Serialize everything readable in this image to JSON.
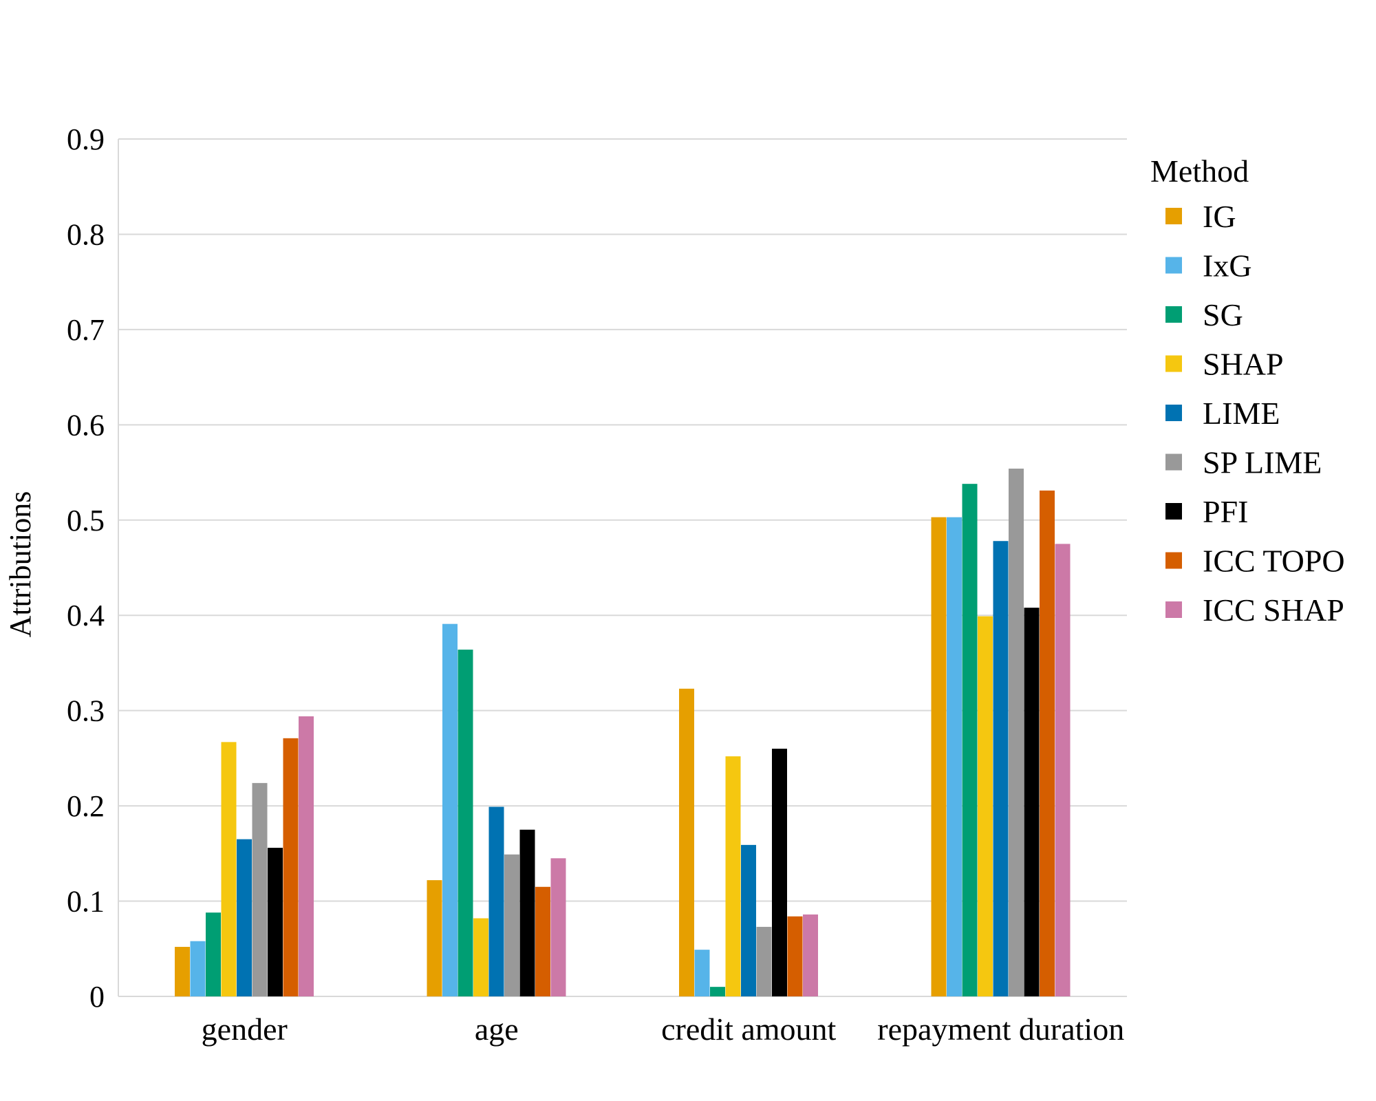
{
  "chart_data": {
    "type": "bar",
    "title": "",
    "xlabel": "",
    "ylabel": "Attributions",
    "ylim": [
      0,
      0.9
    ],
    "yticks": [
      "0",
      "0.1",
      "0.2",
      "0.3",
      "0.4",
      "0.5",
      "0.6",
      "0.7",
      "0.8",
      "0.9"
    ],
    "grid": "horizontal",
    "legend": {
      "title": "Method",
      "placement": "right"
    },
    "categories": [
      "gender",
      "age",
      "credit amount",
      "repayment duration"
    ],
    "series": [
      {
        "name": "IG",
        "color": "#E69F00",
        "values": [
          0.052,
          0.122,
          0.323,
          0.503
        ]
      },
      {
        "name": "IxG",
        "color": "#56B4E9",
        "values": [
          0.058,
          0.391,
          0.049,
          0.503
        ]
      },
      {
        "name": "SG",
        "color": "#009E73",
        "values": [
          0.088,
          0.364,
          0.01,
          0.538
        ]
      },
      {
        "name": "SHAP",
        "color": "#F5C710",
        "values": [
          0.267,
          0.082,
          0.252,
          0.399
        ]
      },
      {
        "name": "LIME",
        "color": "#0072B2",
        "values": [
          0.165,
          0.199,
          0.159,
          0.478
        ]
      },
      {
        "name": "SP LIME",
        "color": "#999999",
        "values": [
          0.224,
          0.149,
          0.073,
          0.554
        ]
      },
      {
        "name": "PFI",
        "color": "#000000",
        "values": [
          0.156,
          0.175,
          0.26,
          0.408
        ]
      },
      {
        "name": "ICC TOPO",
        "color": "#D55E00",
        "values": [
          0.271,
          0.115,
          0.084,
          0.531
        ]
      },
      {
        "name": "ICC SHAP",
        "color": "#CC79A7",
        "values": [
          0.294,
          0.145,
          0.086,
          0.475
        ]
      }
    ]
  }
}
